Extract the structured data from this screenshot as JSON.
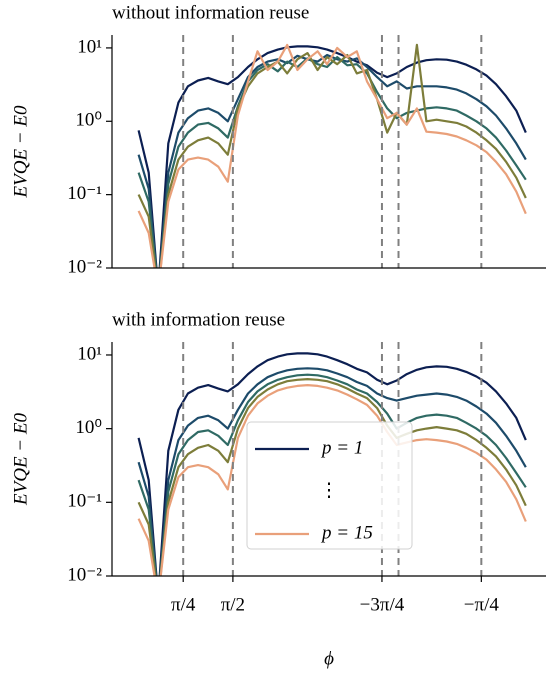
{
  "chart_data": [
    {
      "type": "line",
      "title": "without information reuse",
      "ylabel": "EVQE − E0",
      "log_y": true,
      "ylim": [
        0.01,
        15
      ],
      "yticks": [
        {
          "value": 0.01,
          "label": "10⁻²"
        },
        {
          "value": 0.1,
          "label": "10⁻¹"
        },
        {
          "value": 1,
          "label": "10⁰"
        },
        {
          "value": 10,
          "label": "10¹"
        }
      ],
      "xlim": [
        -0.34,
        6.52
      ],
      "vlines": [
        0.7854,
        1.5708,
        3.927,
        4.1888,
        5.4978
      ],
      "x": [
        0.08,
        0.24,
        0.39,
        0.55,
        0.71,
        0.86,
        1.02,
        1.18,
        1.34,
        1.49,
        1.65,
        1.81,
        1.96,
        2.12,
        2.28,
        2.43,
        2.59,
        2.75,
        2.91,
        3.06,
        3.22,
        3.38,
        3.53,
        3.69,
        3.85,
        4.01,
        4.16,
        4.32,
        4.48,
        4.63,
        4.79,
        4.95,
        5.11,
        5.26,
        5.42,
        5.58,
        5.73,
        5.89,
        6.05,
        6.2
      ],
      "series": [
        {
          "color": "#0c1f52",
          "values": [
            0.75,
            0.2,
            0.005,
            0.5,
            1.8,
            3.0,
            3.6,
            3.9,
            3.5,
            3.2,
            4.0,
            5.5,
            7.0,
            8.5,
            9.5,
            10.2,
            10.5,
            10.5,
            10.2,
            9.5,
            8.5,
            7.5,
            6.5,
            5.8,
            4.6,
            4.0,
            4.5,
            5.5,
            6.3,
            6.8,
            7.0,
            6.9,
            6.5,
            5.9,
            5.1,
            4.2,
            3.2,
            2.2,
            1.4,
            0.7
          ]
        },
        {
          "color": "#1d4b6a",
          "values": [
            0.35,
            0.12,
            0.005,
            0.2,
            0.7,
            1.1,
            1.4,
            1.5,
            1.3,
            1.0,
            2.0,
            4.0,
            5.5,
            6.5,
            7.0,
            6.2,
            7.8,
            7.0,
            6.5,
            8.0,
            7.0,
            6.5,
            7.2,
            5.5,
            4.0,
            3.0,
            3.5,
            2.8,
            3.0,
            3.0,
            3.0,
            2.9,
            2.7,
            2.4,
            2.0,
            1.6,
            1.2,
            0.8,
            0.5,
            0.3
          ]
        },
        {
          "color": "#2f6a64",
          "values": [
            0.2,
            0.08,
            0.005,
            0.14,
            0.45,
            0.7,
            0.9,
            0.95,
            0.8,
            0.6,
            1.6,
            3.5,
            5.0,
            6.0,
            4.8,
            6.5,
            5.5,
            7.2,
            6.0,
            5.5,
            7.5,
            5.8,
            6.0,
            4.5,
            2.5,
            1.5,
            1.1,
            1.3,
            1.4,
            1.5,
            1.55,
            1.5,
            1.4,
            1.2,
            1.0,
            0.8,
            0.6,
            0.4,
            0.25,
            0.16
          ]
        },
        {
          "color": "#7d7d3a",
          "values": [
            0.1,
            0.05,
            0.005,
            0.1,
            0.3,
            0.45,
            0.55,
            0.6,
            0.5,
            0.35,
            1.5,
            3.0,
            4.5,
            5.5,
            6.5,
            4.5,
            7.0,
            8.5,
            5.0,
            7.5,
            6.0,
            8.0,
            4.5,
            5.0,
            2.0,
            0.7,
            1.3,
            0.9,
            11.0,
            1.0,
            1.05,
            1.0,
            0.95,
            0.85,
            0.7,
            0.55,
            0.42,
            0.28,
            0.17,
            0.09
          ]
        },
        {
          "color": "#e9a07a",
          "values": [
            0.06,
            0.03,
            0.005,
            0.08,
            0.22,
            0.3,
            0.32,
            0.3,
            0.24,
            0.15,
            1.2,
            3.5,
            9.0,
            5.0,
            6.5,
            11.0,
            5.0,
            7.0,
            9.0,
            6.0,
            10.0,
            7.5,
            9.0,
            3.5,
            2.0,
            1.1,
            1.3,
            0.9,
            1.5,
            0.72,
            0.7,
            0.67,
            0.62,
            0.55,
            0.47,
            0.38,
            0.28,
            0.19,
            0.11,
            0.055
          ]
        }
      ]
    },
    {
      "type": "line",
      "title": "with information reuse",
      "ylabel": "EVQE − E0",
      "xlabel": "ϕ",
      "log_y": true,
      "ylim": [
        0.01,
        15
      ],
      "yticks": [
        {
          "value": 0.01,
          "label": "10⁻²"
        },
        {
          "value": 0.1,
          "label": "10⁻¹"
        },
        {
          "value": 1,
          "label": "10⁰"
        },
        {
          "value": 10,
          "label": "10¹"
        }
      ],
      "xlim": [
        -0.34,
        6.52
      ],
      "vlines": [
        0.7854,
        1.5708,
        3.927,
        4.1888,
        5.4978
      ],
      "xticks": [
        {
          "value": 0.7854,
          "label": "π/4"
        },
        {
          "value": 1.5708,
          "label": "π/2"
        },
        {
          "value": 3.927,
          "label": "−3π/4"
        },
        {
          "value": 5.4978,
          "label": "−π/4"
        }
      ],
      "legend": {
        "loc": "center",
        "ellipsis": "⋮"
      },
      "x": [
        0.08,
        0.24,
        0.39,
        0.55,
        0.71,
        0.86,
        1.02,
        1.18,
        1.34,
        1.49,
        1.65,
        1.81,
        1.96,
        2.12,
        2.28,
        2.43,
        2.59,
        2.75,
        2.91,
        3.06,
        3.22,
        3.38,
        3.53,
        3.69,
        3.85,
        4.01,
        4.16,
        4.32,
        4.48,
        4.63,
        4.79,
        4.95,
        5.11,
        5.26,
        5.42,
        5.58,
        5.73,
        5.89,
        6.05,
        6.2
      ],
      "series": [
        {
          "name": "p = 1",
          "color": "#0c1f52",
          "values": [
            0.75,
            0.2,
            0.005,
            0.5,
            1.8,
            3.0,
            3.6,
            3.9,
            3.5,
            3.2,
            4.0,
            5.5,
            7.0,
            8.5,
            9.5,
            10.2,
            10.5,
            10.5,
            10.2,
            9.5,
            8.5,
            7.5,
            6.5,
            5.8,
            4.6,
            4.0,
            4.5,
            5.5,
            6.3,
            6.8,
            7.0,
            6.9,
            6.5,
            5.9,
            5.1,
            4.2,
            3.2,
            2.2,
            1.4,
            0.7
          ]
        },
        {
          "color": "#1d4b6a",
          "values": [
            0.35,
            0.12,
            0.005,
            0.2,
            0.7,
            1.1,
            1.4,
            1.5,
            1.3,
            1.0,
            1.8,
            3.0,
            4.0,
            5.0,
            5.7,
            6.2,
            6.5,
            6.6,
            6.5,
            6.2,
            5.6,
            5.0,
            4.3,
            3.8,
            3.0,
            2.6,
            2.4,
            2.6,
            2.8,
            2.9,
            3.0,
            2.9,
            2.7,
            2.4,
            2.0,
            1.6,
            1.2,
            0.8,
            0.5,
            0.3
          ]
        },
        {
          "color": "#2f6a64",
          "values": [
            0.2,
            0.08,
            0.005,
            0.14,
            0.45,
            0.7,
            0.9,
            0.95,
            0.8,
            0.6,
            1.3,
            2.3,
            3.2,
            4.0,
            4.6,
            5.0,
            5.3,
            5.4,
            5.3,
            5.0,
            4.5,
            4.0,
            3.4,
            3.0,
            2.3,
            1.6,
            1.0,
            1.2,
            1.4,
            1.5,
            1.55,
            1.5,
            1.4,
            1.2,
            1.0,
            0.8,
            0.6,
            0.4,
            0.25,
            0.16
          ]
        },
        {
          "color": "#7d7d3a",
          "values": [
            0.1,
            0.05,
            0.005,
            0.1,
            0.3,
            0.45,
            0.55,
            0.6,
            0.5,
            0.35,
            1.0,
            1.9,
            2.7,
            3.4,
            4.0,
            4.4,
            4.6,
            4.7,
            4.6,
            4.4,
            4.0,
            3.5,
            3.0,
            2.6,
            1.9,
            1.1,
            0.75,
            0.85,
            0.95,
            1.0,
            1.05,
            1.0,
            0.95,
            0.85,
            0.7,
            0.55,
            0.42,
            0.28,
            0.17,
            0.09
          ]
        },
        {
          "name": "p = 15",
          "color": "#e9a07a",
          "values": [
            0.06,
            0.03,
            0.005,
            0.08,
            0.22,
            0.3,
            0.32,
            0.3,
            0.24,
            0.15,
            0.75,
            1.5,
            2.2,
            2.8,
            3.3,
            3.6,
            3.8,
            3.9,
            3.8,
            3.6,
            3.3,
            2.9,
            2.5,
            2.1,
            1.5,
            0.9,
            0.6,
            0.65,
            0.7,
            0.72,
            0.7,
            0.67,
            0.62,
            0.55,
            0.47,
            0.38,
            0.28,
            0.19,
            0.11,
            0.055
          ]
        }
      ]
    }
  ]
}
